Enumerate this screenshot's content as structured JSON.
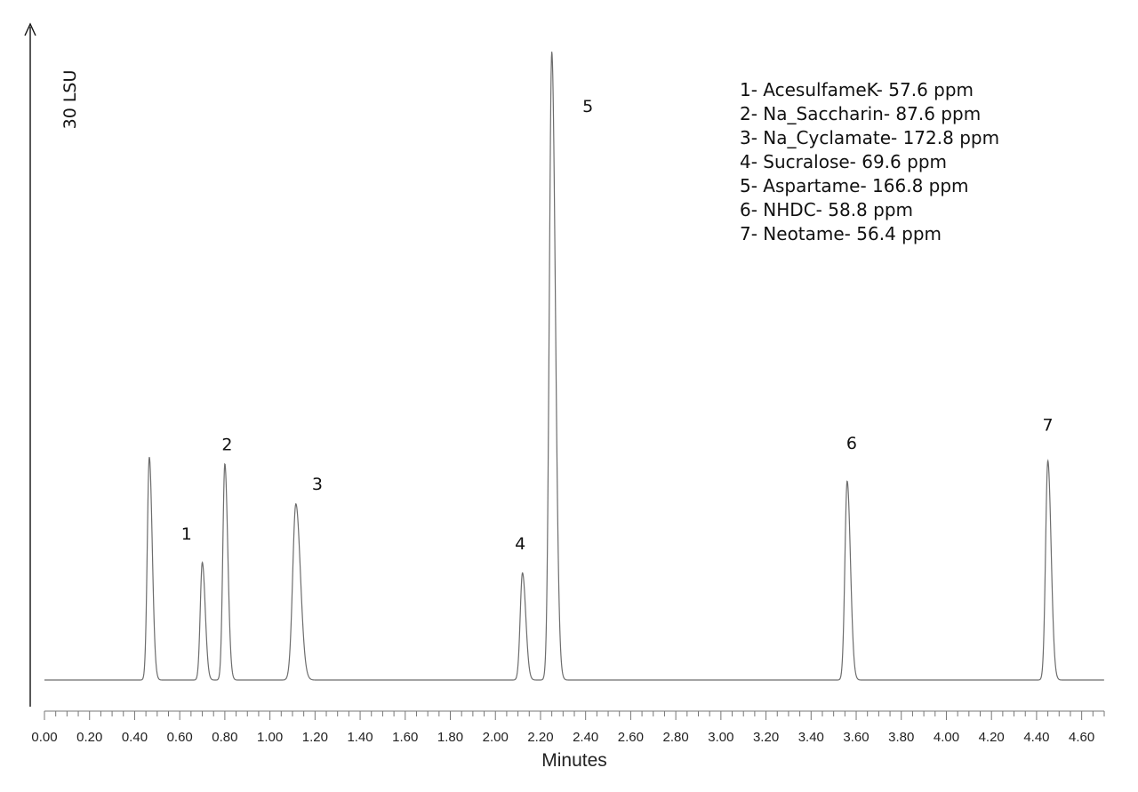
{
  "chart_data": {
    "type": "line",
    "title": "",
    "xlabel": "Minutes",
    "ylabel": "30 LSU",
    "xlim": [
      0,
      4.7
    ],
    "ylim": [
      0,
      100
    ],
    "grid": false,
    "legend_position": "top-right",
    "x_ticks": [
      "0.00",
      "0.20",
      "0.40",
      "0.60",
      "0.80",
      "1.00",
      "1.20",
      "1.40",
      "1.60",
      "1.80",
      "2.00",
      "2.20",
      "2.40",
      "2.60",
      "2.80",
      "3.00",
      "3.20",
      "3.40",
      "3.60",
      "3.80",
      "4.00",
      "4.20",
      "4.40",
      "4.60"
    ],
    "baseline": 0,
    "peaks": [
      {
        "label": "",
        "rt": 0.465,
        "height": 36.2,
        "sigma": 0.009
      },
      {
        "label": "1",
        "rt": 0.7,
        "height": 19.1,
        "sigma": 0.009
      },
      {
        "label": "2",
        "rt": 0.8,
        "height": 35.1,
        "sigma": 0.009
      },
      {
        "label": "3",
        "rt": 1.115,
        "height": 28.6,
        "sigma": 0.014
      },
      {
        "label": "4",
        "rt": 2.12,
        "height": 17.4,
        "sigma": 0.01
      },
      {
        "label": "5",
        "rt": 2.25,
        "height": 102.0,
        "sigma": 0.011
      },
      {
        "label": "6",
        "rt": 3.56,
        "height": 32.3,
        "sigma": 0.01
      },
      {
        "label": "7",
        "rt": 4.45,
        "height": 35.6,
        "sigma": 0.01
      }
    ],
    "peak_labels": [
      {
        "text": "1",
        "rt": 0.63,
        "level": 22.8
      },
      {
        "text": "2",
        "rt": 0.81,
        "level": 37.3
      },
      {
        "text": "3",
        "rt": 1.21,
        "level": 30.9
      },
      {
        "text": "4",
        "rt": 2.11,
        "level": 21.2
      },
      {
        "text": "5",
        "rt": 2.41,
        "level": 92.2
      },
      {
        "text": "6",
        "rt": 3.58,
        "level": 37.5
      },
      {
        "text": "7",
        "rt": 4.45,
        "level": 40.5
      }
    ],
    "legend": [
      "1- AcesulfameK- 57.6 ppm",
      "2- Na_Saccharin- 87.6 ppm",
      "3- Na_Cyclamate- 172.8 ppm",
      "4- Sucralose- 69.6 ppm",
      "5- Aspartame- 166.8 ppm",
      "6- NHDC- 58.8 ppm",
      "7- Neotame- 56.4 ppm"
    ]
  }
}
